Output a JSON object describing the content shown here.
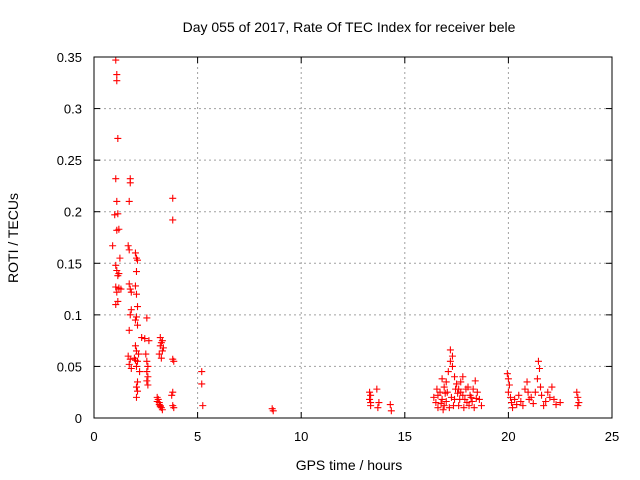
{
  "chart_data": {
    "type": "scatter",
    "title": "Day 055 of 2017, Rate Of TEC Index for receiver bele",
    "xlabel": "GPS time / hours",
    "ylabel": "ROTI / TECUs",
    "xlim": [
      0,
      25
    ],
    "ylim": [
      0,
      0.35
    ],
    "xticks": [
      0,
      5,
      10,
      15,
      20,
      25
    ],
    "xtick_labels": [
      "0",
      "5",
      "10",
      "15",
      "20",
      "25"
    ],
    "yticks": [
      0,
      0.05,
      0.1,
      0.15,
      0.2,
      0.25,
      0.3,
      0.35
    ],
    "ytick_labels": [
      "0",
      "0.05",
      "0.1",
      "0.15",
      "0.2",
      "0.25",
      "0.3",
      "0.35"
    ],
    "grid": true,
    "marker": "plus",
    "color": "#ff0000",
    "points": [
      [
        1.05,
        0.347
      ],
      [
        1.1,
        0.333
      ],
      [
        1.1,
        0.327
      ],
      [
        1.15,
        0.271
      ],
      [
        1.05,
        0.232
      ],
      [
        1.1,
        0.21
      ],
      [
        1.0,
        0.197
      ],
      [
        1.15,
        0.198
      ],
      [
        1.1,
        0.182
      ],
      [
        1.2,
        0.183
      ],
      [
        0.9,
        0.167
      ],
      [
        1.25,
        0.155
      ],
      [
        1.05,
        0.148
      ],
      [
        1.1,
        0.143
      ],
      [
        1.2,
        0.14
      ],
      [
        1.15,
        0.138
      ],
      [
        1.05,
        0.127
      ],
      [
        1.2,
        0.126
      ],
      [
        1.1,
        0.122
      ],
      [
        1.3,
        0.125
      ],
      [
        1.15,
        0.113
      ],
      [
        1.05,
        0.11
      ],
      [
        1.75,
        0.232
      ],
      [
        1.75,
        0.228
      ],
      [
        1.7,
        0.21
      ],
      [
        1.65,
        0.167
      ],
      [
        1.7,
        0.163
      ],
      [
        1.7,
        0.13
      ],
      [
        1.75,
        0.125
      ],
      [
        1.8,
        0.122
      ],
      [
        1.8,
        0.105
      ],
      [
        1.75,
        0.1
      ],
      [
        1.7,
        0.085
      ],
      [
        1.65,
        0.06
      ],
      [
        1.75,
        0.057
      ],
      [
        1.7,
        0.052
      ],
      [
        1.8,
        0.048
      ],
      [
        2.0,
        0.16
      ],
      [
        2.05,
        0.155
      ],
      [
        2.1,
        0.153
      ],
      [
        2.05,
        0.142
      ],
      [
        2.0,
        0.128
      ],
      [
        2.05,
        0.12
      ],
      [
        2.1,
        0.108
      ],
      [
        2.05,
        0.098
      ],
      [
        2.0,
        0.095
      ],
      [
        2.1,
        0.09
      ],
      [
        2.0,
        0.07
      ],
      [
        2.05,
        0.065
      ],
      [
        2.15,
        0.062
      ],
      [
        1.95,
        0.058
      ],
      [
        2.0,
        0.056
      ],
      [
        2.1,
        0.055
      ],
      [
        2.05,
        0.05
      ],
      [
        2.2,
        0.045
      ],
      [
        2.1,
        0.035
      ],
      [
        2.05,
        0.03
      ],
      [
        2.1,
        0.026
      ],
      [
        2.05,
        0.02
      ],
      [
        2.3,
        0.078
      ],
      [
        2.45,
        0.077
      ],
      [
        2.55,
        0.097
      ],
      [
        2.5,
        0.062
      ],
      [
        2.55,
        0.055
      ],
      [
        2.6,
        0.05
      ],
      [
        2.55,
        0.045
      ],
      [
        2.6,
        0.04
      ],
      [
        2.55,
        0.036
      ],
      [
        2.6,
        0.032
      ],
      [
        2.65,
        0.075
      ],
      [
        3.05,
        0.02
      ],
      [
        3.1,
        0.018
      ],
      [
        3.15,
        0.015
      ],
      [
        3.2,
        0.012
      ],
      [
        3.25,
        0.01
      ],
      [
        3.3,
        0.008
      ],
      [
        3.05,
        0.016
      ],
      [
        3.15,
        0.013
      ],
      [
        3.2,
        0.011
      ],
      [
        3.2,
        0.078
      ],
      [
        3.25,
        0.073
      ],
      [
        3.2,
        0.07
      ],
      [
        3.3,
        0.065
      ],
      [
        3.15,
        0.062
      ],
      [
        3.25,
        0.058
      ],
      [
        3.35,
        0.068
      ],
      [
        3.3,
        0.075
      ],
      [
        3.8,
        0.213
      ],
      [
        3.8,
        0.192
      ],
      [
        3.8,
        0.057
      ],
      [
        3.85,
        0.055
      ],
      [
        3.8,
        0.025
      ],
      [
        3.75,
        0.022
      ],
      [
        3.8,
        0.012
      ],
      [
        3.85,
        0.01
      ],
      [
        5.2,
        0.045
      ],
      [
        5.2,
        0.033
      ],
      [
        5.25,
        0.012
      ],
      [
        8.6,
        0.009
      ],
      [
        8.65,
        0.007
      ],
      [
        13.3,
        0.025
      ],
      [
        13.35,
        0.022
      ],
      [
        13.3,
        0.018
      ],
      [
        13.35,
        0.015
      ],
      [
        13.35,
        0.012
      ],
      [
        13.65,
        0.028
      ],
      [
        13.75,
        0.015
      ],
      [
        13.7,
        0.01
      ],
      [
        14.3,
        0.013
      ],
      [
        14.35,
        0.007
      ],
      [
        16.4,
        0.02
      ],
      [
        16.5,
        0.015
      ],
      [
        16.6,
        0.01
      ],
      [
        16.7,
        0.025
      ],
      [
        16.8,
        0.018
      ],
      [
        16.9,
        0.012
      ],
      [
        17.0,
        0.035
      ],
      [
        17.1,
        0.045
      ],
      [
        17.2,
        0.055
      ],
      [
        17.2,
        0.066
      ],
      [
        17.3,
        0.06
      ],
      [
        17.3,
        0.05
      ],
      [
        17.4,
        0.04
      ],
      [
        17.5,
        0.033
      ],
      [
        17.6,
        0.028
      ],
      [
        17.7,
        0.025
      ],
      [
        17.8,
        0.022
      ],
      [
        17.9,
        0.018
      ],
      [
        18.0,
        0.015
      ],
      [
        18.1,
        0.012
      ],
      [
        18.2,
        0.02
      ],
      [
        18.3,
        0.028
      ],
      [
        18.4,
        0.036
      ],
      [
        18.5,
        0.025
      ],
      [
        18.6,
        0.018
      ],
      [
        18.7,
        0.012
      ],
      [
        16.8,
        0.038
      ],
      [
        16.9,
        0.03
      ],
      [
        17.05,
        0.025
      ],
      [
        17.4,
        0.018
      ],
      [
        17.6,
        0.012
      ],
      [
        17.7,
        0.035
      ],
      [
        17.8,
        0.04
      ],
      [
        18.05,
        0.03
      ],
      [
        16.55,
        0.028
      ],
      [
        16.6,
        0.022
      ],
      [
        16.75,
        0.014
      ],
      [
        16.85,
        0.008
      ],
      [
        17.15,
        0.01
      ],
      [
        17.25,
        0.02
      ],
      [
        17.45,
        0.028
      ],
      [
        17.55,
        0.024
      ],
      [
        17.85,
        0.01
      ],
      [
        17.95,
        0.028
      ],
      [
        18.15,
        0.022
      ],
      [
        18.25,
        0.016
      ],
      [
        18.35,
        0.01
      ],
      [
        18.45,
        0.019
      ],
      [
        17.0,
        0.016
      ],
      [
        17.35,
        0.012
      ],
      [
        17.65,
        0.018
      ],
      [
        16.95,
        0.024
      ],
      [
        19.95,
        0.043
      ],
      [
        20.0,
        0.038
      ],
      [
        20.05,
        0.032
      ],
      [
        20.0,
        0.025
      ],
      [
        20.1,
        0.02
      ],
      [
        20.15,
        0.015
      ],
      [
        20.2,
        0.01
      ],
      [
        20.3,
        0.018
      ],
      [
        20.4,
        0.013
      ],
      [
        20.5,
        0.022
      ],
      [
        20.6,
        0.016
      ],
      [
        20.7,
        0.012
      ],
      [
        20.8,
        0.028
      ],
      [
        20.9,
        0.035
      ],
      [
        20.95,
        0.025
      ],
      [
        21.0,
        0.018
      ],
      [
        21.1,
        0.02
      ],
      [
        21.2,
        0.014
      ],
      [
        21.3,
        0.025
      ],
      [
        21.4,
        0.038
      ],
      [
        21.45,
        0.055
      ],
      [
        21.5,
        0.048
      ],
      [
        21.55,
        0.03
      ],
      [
        21.6,
        0.022
      ],
      [
        21.7,
        0.012
      ],
      [
        21.8,
        0.016
      ],
      [
        21.9,
        0.025
      ],
      [
        22.0,
        0.02
      ],
      [
        22.1,
        0.03
      ],
      [
        22.2,
        0.018
      ],
      [
        22.3,
        0.013
      ],
      [
        22.5,
        0.015
      ],
      [
        23.3,
        0.025
      ],
      [
        23.35,
        0.02
      ],
      [
        23.4,
        0.015
      ],
      [
        23.35,
        0.012
      ]
    ]
  }
}
